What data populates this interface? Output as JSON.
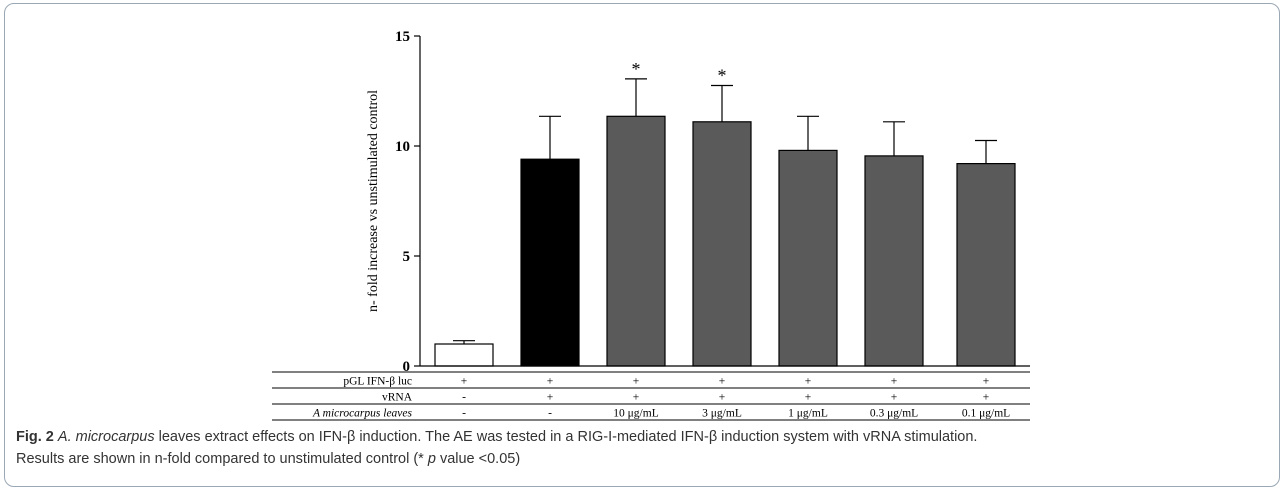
{
  "chart_data": {
    "type": "bar",
    "ylabel": "n- fold increase vs unstimulated control",
    "ylim": [
      0,
      15
    ],
    "yticks": [
      "0",
      "5",
      "10",
      "15"
    ],
    "bars": [
      {
        "value": 1.0,
        "error": 0.15,
        "color": "#ffffff",
        "sig": ""
      },
      {
        "value": 9.4,
        "error": 1.95,
        "color": "#000000",
        "sig": ""
      },
      {
        "value": 11.35,
        "error": 1.7,
        "color": "#5a5a5a",
        "sig": "*"
      },
      {
        "value": 11.1,
        "error": 1.65,
        "color": "#5a5a5a",
        "sig": "*"
      },
      {
        "value": 9.8,
        "error": 1.55,
        "color": "#5a5a5a",
        "sig": ""
      },
      {
        "value": 9.55,
        "error": 1.55,
        "color": "#5a5a5a",
        "sig": ""
      },
      {
        "value": 9.2,
        "error": 1.05,
        "color": "#5a5a5a",
        "sig": ""
      }
    ],
    "table": {
      "rows": [
        {
          "label": "pGL IFN-β luc",
          "italic": false,
          "cells": [
            "+",
            "+",
            "+",
            "+",
            "+",
            "+",
            "+"
          ]
        },
        {
          "label": "vRNA",
          "italic": false,
          "cells": [
            "-",
            "+",
            "+",
            "+",
            "+",
            "+",
            "+"
          ]
        },
        {
          "label": "A microcarpus leaves",
          "italic": true,
          "cells": [
            "-",
            "-",
            "10 μg/mL",
            "3 μg/mL",
            "1 μg/mL",
            "0.3 μg/mL",
            "0.1 μg/mL"
          ]
        }
      ]
    }
  },
  "caption": {
    "fig_label": "Fig. 2",
    "species": "A. microcarpus",
    "line1_rest": " leaves extract effects on IFN-β induction. The AE was tested in a RIG-I-mediated IFN-β induction system with vRNA stimulation.",
    "line2_a": "Results are shown in n-fold compared to unstimulated control (* ",
    "line2_p": "p",
    "line2_b": " value <0.05)"
  }
}
